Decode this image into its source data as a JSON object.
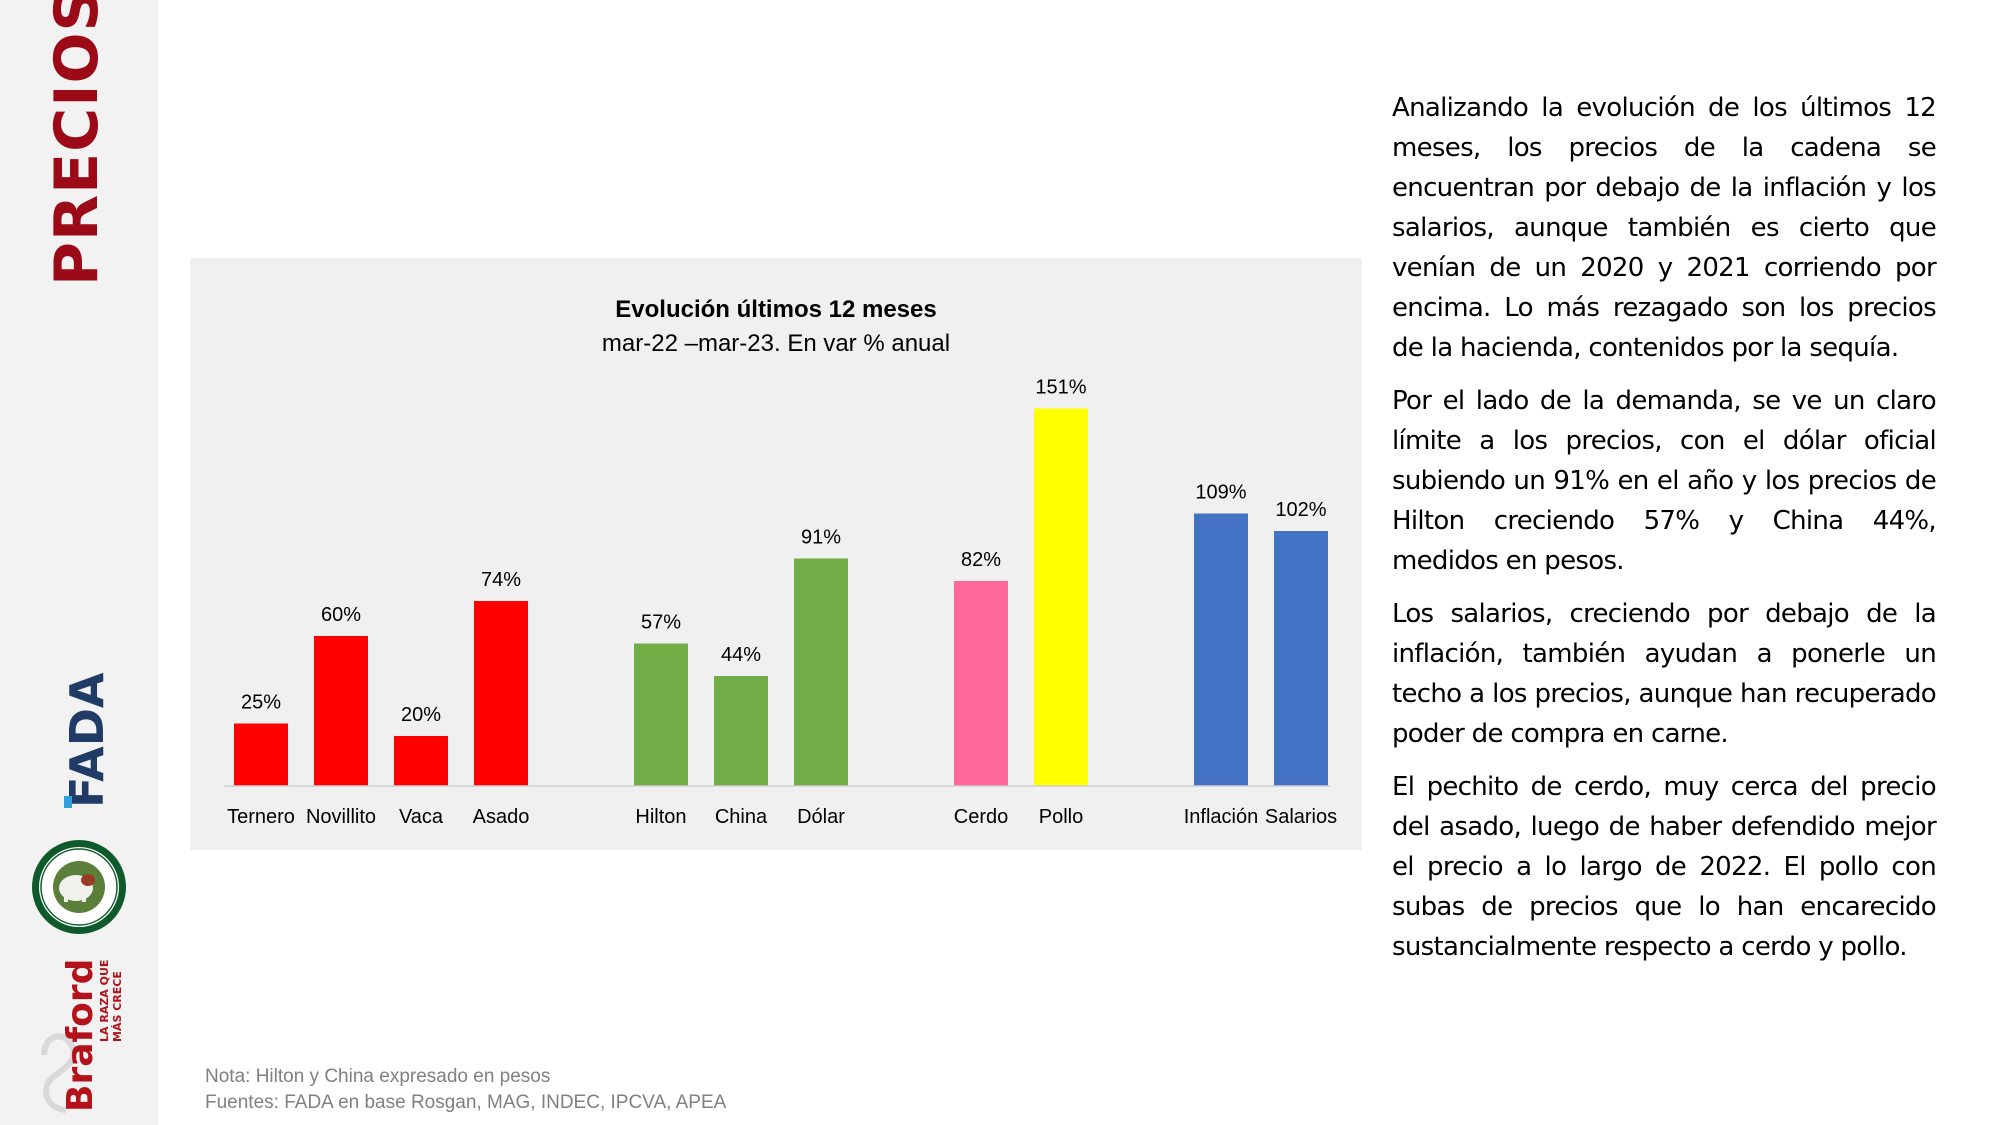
{
  "section_title": "PRECIOS",
  "logos": {
    "fada": "FADA",
    "braford": "Braford",
    "braford_tagline_1": "LA RAZA QUE",
    "braford_tagline_2": "MÁS CRECE",
    "seal_icon": "hereford-seal-icon"
  },
  "colors": {
    "title_red": "#9c0a17",
    "hacienda": "#ff0000",
    "exportacion": "#70ad47",
    "cerdo": "#ff6699",
    "pollo": "#ffff00",
    "macro": "#4472c4"
  },
  "chart_data": {
    "type": "bar",
    "title": "Evolución últimos 12 meses",
    "subtitle": "mar-22 –mar-23. En var % anual",
    "categories": [
      "Ternero",
      "Novillito",
      "Vaca",
      "Asado",
      "Hilton",
      "China",
      "Dólar",
      "Cerdo",
      "Pollo",
      "Inflación",
      "Salarios"
    ],
    "values": [
      25,
      60,
      20,
      74,
      57,
      44,
      91,
      82,
      151,
      109,
      102
    ],
    "value_labels": [
      "25%",
      "60%",
      "20%",
      "74%",
      "57%",
      "44%",
      "91%",
      "82%",
      "151%",
      "109%",
      "102%"
    ],
    "groups": [
      [
        0,
        1,
        2,
        3
      ],
      [
        4,
        5,
        6
      ],
      [
        7,
        8
      ],
      [
        9,
        10
      ]
    ],
    "bar_colors": [
      "#ff0000",
      "#ff0000",
      "#ff0000",
      "#ff0000",
      "#70ad47",
      "#70ad47",
      "#70ad47",
      "#ff6699",
      "#ffff00",
      "#4472c4",
      "#4472c4"
    ],
    "xlabel": "",
    "ylabel": "",
    "ylim": [
      0,
      160
    ],
    "grid": false,
    "legend": "none"
  },
  "notes": {
    "nota": "Nota: Hilton y China expresado en pesos",
    "fuentes": "Fuentes: FADA en base Rosgan, MAG, INDEC, IPCVA, APEA"
  },
  "paragraphs": [
    "Analizando la evolución de los últimos 12 meses, los precios de la cadena se encuentran por debajo de la inflación y los salarios, aunque también es cierto que venían de un 2020 y 2021 corriendo por encima. Lo más rezagado son los precios de la hacienda, contenidos por la sequía.",
    "Por el lado de la demanda, se ve un claro límite a los precios, con el dólar oficial subiendo un 91% en el año y los precios de Hilton creciendo 57% y China 44%, medidos en pesos.",
    "Los salarios, creciendo por debajo de la inflación, también ayudan a ponerle un techo a los precios, aunque han recuperado poder de compra en carne.",
    "El pechito de cerdo, muy cerca del precio del asado, luego de haber defendido mejor el precio a lo largo de 2022. El pollo con subas de precios que lo han encarecido sustancialmente respecto a cerdo y pollo."
  ]
}
